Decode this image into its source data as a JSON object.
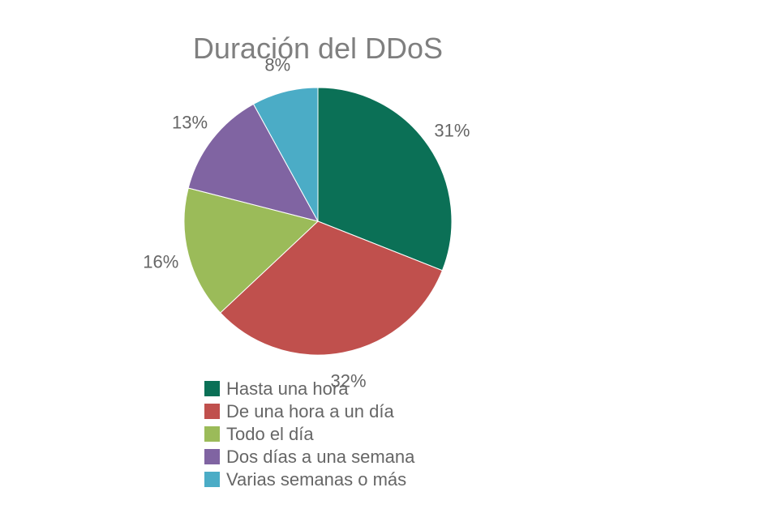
{
  "chart_data": {
    "type": "pie",
    "title": "Duración del DDoS",
    "categories": [
      "Hasta una hora",
      "De una hora a un día",
      "Todo el día",
      "Dos días a una semana",
      "Varias semanas o más"
    ],
    "values": [
      31,
      32,
      16,
      13,
      8
    ],
    "labels": [
      "31%",
      "32%",
      "16%",
      "13%",
      "8%"
    ],
    "colors": [
      "#0b7056",
      "#c0504d",
      "#9bbb59",
      "#8064a2",
      "#4bacc6"
    ],
    "start_angle": "12 o'clock, clockwise",
    "legend_position": "bottom",
    "label_color": "#666666",
    "title_color": "#7f7f7f"
  }
}
